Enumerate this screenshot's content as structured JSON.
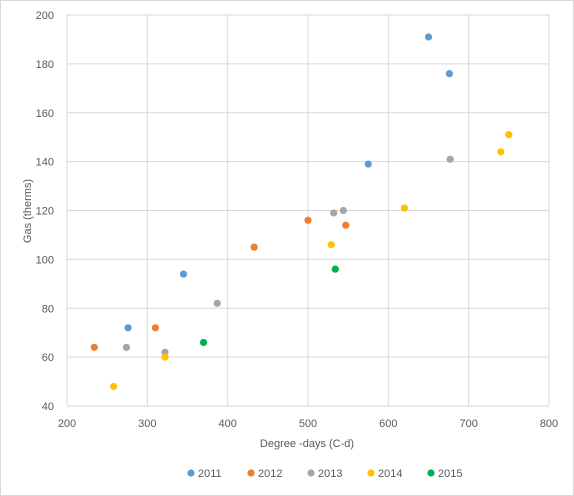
{
  "chart_data": {
    "type": "scatter",
    "title": "",
    "xlabel": "Degree -days (C-d)",
    "ylabel": "Gas (therms)",
    "xlim": [
      200,
      800
    ],
    "ylim": [
      40,
      200
    ],
    "xticks": [
      200,
      300,
      400,
      500,
      600,
      700,
      800
    ],
    "yticks": [
      40,
      60,
      80,
      100,
      120,
      140,
      160,
      180,
      200
    ],
    "grid": true,
    "legend": "bottom",
    "series": [
      {
        "name": "2011",
        "color": "#5b9bd5",
        "points": [
          [
            276,
            72
          ],
          [
            345,
            94
          ],
          [
            575,
            139
          ],
          [
            650,
            191
          ],
          [
            676,
            176
          ]
        ]
      },
      {
        "name": "2012",
        "color": "#ed7d31",
        "points": [
          [
            234,
            64
          ],
          [
            310,
            72
          ],
          [
            433,
            105
          ],
          [
            500,
            116
          ],
          [
            547,
            114
          ]
        ]
      },
      {
        "name": "2013",
        "color": "#a5a5a5",
        "points": [
          [
            274,
            64
          ],
          [
            322,
            62
          ],
          [
            387,
            82
          ],
          [
            532,
            119
          ],
          [
            544,
            120
          ],
          [
            677,
            141
          ]
        ]
      },
      {
        "name": "2014",
        "color": "#ffc000",
        "points": [
          [
            258,
            48
          ],
          [
            322,
            60
          ],
          [
            529,
            106
          ],
          [
            620,
            121
          ],
          [
            740,
            144
          ],
          [
            750,
            151
          ]
        ]
      },
      {
        "name": "2015",
        "color": "#00b050",
        "points": [
          [
            370,
            66
          ],
          [
            534,
            96
          ]
        ]
      }
    ]
  }
}
